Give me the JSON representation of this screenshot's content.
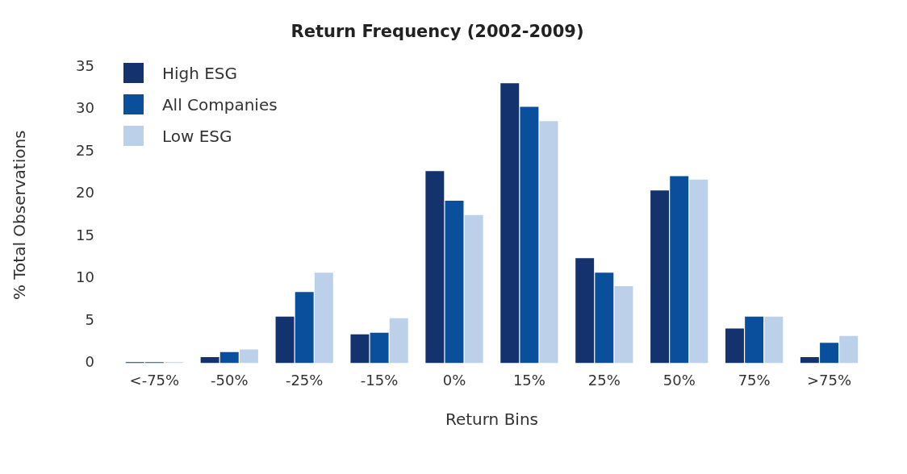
{
  "chart_data": {
    "type": "bar",
    "title": "Return Frequency (2002-2009)",
    "x_label": "Return Bins",
    "y_label": "% Total Observations",
    "categories": [
      "<-75%",
      "-50%",
      "-25%",
      "-15%",
      "0%",
      "15%",
      "25%",
      "50%",
      "75%",
      ">75%"
    ],
    "series": [
      {
        "name": "High ESG",
        "color": "#14336e",
        "values": [
          0.1,
          0.7,
          5.5,
          3.4,
          22.7,
          33.1,
          12.4,
          20.4,
          4.1,
          0.7
        ]
      },
      {
        "name": "All Companies",
        "color": "#0a4f9c",
        "values": [
          0.1,
          1.3,
          8.4,
          3.6,
          19.2,
          30.3,
          10.7,
          22.1,
          5.5,
          2.4
        ]
      },
      {
        "name": "Low ESG",
        "color": "#bdd0ea",
        "values": [
          0.1,
          1.6,
          10.7,
          5.3,
          17.5,
          28.6,
          9.1,
          21.7,
          5.5,
          3.2
        ]
      }
    ],
    "ylim": [
      0,
      35
    ],
    "yticks": [
      0,
      5,
      10,
      15,
      20,
      25,
      30,
      35
    ],
    "grid": false,
    "legend": "upper left"
  }
}
